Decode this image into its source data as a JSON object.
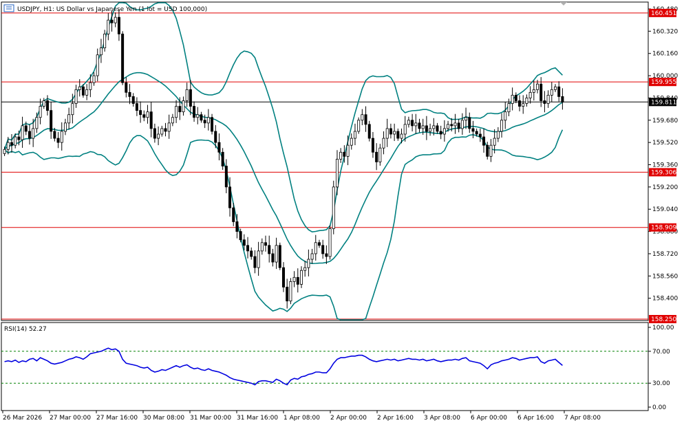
{
  "header": {
    "title": "USDJPY, H1:  US Dollar vs Japanese Yen (1 lot = USD 100,000)"
  },
  "colors": {
    "candle": "#000000",
    "bollinger": "#008080",
    "level_line": "#e00000",
    "current_line": "#000000",
    "rsi_line": "#0000e0",
    "rsi_level": "#008000",
    "level_label_bg": "#e00000",
    "current_label_bg": "#000000"
  },
  "chart_data": [
    {
      "type": "candlestick",
      "symbol": "USDJPY",
      "timeframe": "H1",
      "ylim": [
        158.25,
        160.48
      ],
      "y_ticks": [
        "160.480",
        "160.320",
        "160.160",
        "160.000",
        "159.840",
        "159.680",
        "159.520",
        "159.360",
        "159.200",
        "159.040",
        "158.880",
        "158.720",
        "158.560",
        "158.400"
      ],
      "x_ticks": [
        "26 Mar 2026",
        "27 Mar 00:00",
        "27 Mar 16:00",
        "30 Mar 08:00",
        "31 Mar 00:00",
        "31 Mar 16:00",
        "1 Apr 08:00",
        "2 Apr 00:00",
        "2 Apr 16:00",
        "3 Apr 08:00",
        "6 Apr 00:00",
        "6 Apr 16:00",
        "7 Apr 08:00"
      ],
      "levels": [
        "160.451",
        "159.955",
        "159.306",
        "158.909",
        "158.250"
      ],
      "current_price": "159.811",
      "close_series": [
        159.47,
        159.52,
        159.5,
        159.56,
        159.54,
        159.64,
        159.6,
        159.55,
        159.62,
        159.7,
        159.78,
        159.82,
        159.75,
        159.6,
        159.55,
        159.52,
        159.6,
        159.66,
        159.72,
        159.8,
        159.9,
        159.92,
        159.86,
        159.9,
        159.95,
        160.0,
        160.15,
        160.2,
        160.3,
        160.4,
        160.38,
        160.42,
        160.3,
        159.95,
        159.88,
        159.85,
        159.8,
        159.75,
        159.72,
        159.7,
        159.74,
        159.62,
        159.55,
        159.58,
        159.62,
        159.6,
        159.66,
        159.7,
        159.78,
        159.74,
        159.82,
        159.9,
        159.78,
        159.7,
        159.72,
        159.68,
        159.66,
        159.7,
        159.6,
        159.52,
        159.45,
        159.35,
        159.2,
        159.05,
        158.95,
        158.88,
        158.82,
        158.78,
        158.74,
        158.7,
        158.62,
        158.74,
        158.8,
        158.78,
        158.72,
        158.66,
        158.78,
        158.62,
        158.48,
        158.38,
        158.52,
        158.55,
        158.5,
        158.6,
        158.62,
        158.68,
        158.72,
        158.8,
        158.78,
        158.72,
        158.7,
        158.9,
        159.2,
        159.4,
        159.45,
        159.42,
        159.5,
        159.55,
        159.6,
        159.68,
        159.72,
        159.65,
        159.55,
        159.45,
        159.38,
        159.48,
        159.55,
        159.62,
        159.58,
        159.6,
        159.55,
        159.58,
        159.65,
        159.68,
        159.64,
        159.66,
        159.62,
        159.64,
        159.6,
        159.62,
        159.64,
        159.6,
        159.58,
        159.62,
        159.65,
        159.64,
        159.66,
        159.62,
        159.68,
        159.7,
        159.62,
        159.6,
        159.58,
        159.56,
        159.5,
        159.42,
        159.5,
        159.55,
        159.6,
        159.68,
        159.74,
        159.8,
        159.86,
        159.82,
        159.78,
        159.8,
        159.84,
        159.88,
        159.9,
        159.94,
        159.82,
        159.8,
        159.86,
        159.9,
        159.92,
        159.85,
        159.81
      ],
      "bollinger": {
        "period": 20,
        "deviations": 2
      }
    },
    {
      "type": "line",
      "title": "RSI(14) 52.27",
      "name": "RSI(14)",
      "value": 52.27,
      "ylim": [
        0,
        100
      ],
      "y_ticks": [
        "100.00",
        "70.00",
        "30.00",
        "0.00"
      ],
      "levels": [
        70,
        30
      ],
      "values": [
        57,
        58,
        57,
        59,
        56,
        58,
        57,
        60,
        61,
        58,
        62,
        60,
        58,
        55,
        54,
        55,
        56,
        58,
        60,
        61,
        63,
        62,
        60,
        63,
        67,
        68,
        69,
        70,
        72,
        74,
        72,
        73,
        70,
        60,
        55,
        54,
        53,
        52,
        50,
        49,
        50,
        46,
        44,
        45,
        47,
        46,
        48,
        50,
        52,
        50,
        52,
        53,
        50,
        48,
        49,
        47,
        46,
        48,
        46,
        45,
        44,
        42,
        40,
        37,
        35,
        34,
        33,
        32,
        31,
        30,
        28,
        32,
        33,
        33,
        32,
        31,
        35,
        33,
        30,
        28,
        34,
        36,
        35,
        38,
        39,
        41,
        42,
        44,
        44,
        43,
        43,
        48,
        55,
        60,
        62,
        62,
        63,
        64,
        64,
        65,
        65,
        63,
        60,
        58,
        57,
        58,
        59,
        60,
        59,
        60,
        58,
        59,
        60,
        61,
        60,
        60,
        59,
        60,
        58,
        59,
        60,
        58,
        57,
        58,
        59,
        59,
        60,
        59,
        61,
        62,
        58,
        57,
        56,
        55,
        52,
        48,
        53,
        55,
        56,
        58,
        59,
        60,
        62,
        61,
        59,
        60,
        61,
        62,
        62,
        63,
        57,
        55,
        58,
        59,
        60,
        56,
        52.27
      ]
    }
  ]
}
